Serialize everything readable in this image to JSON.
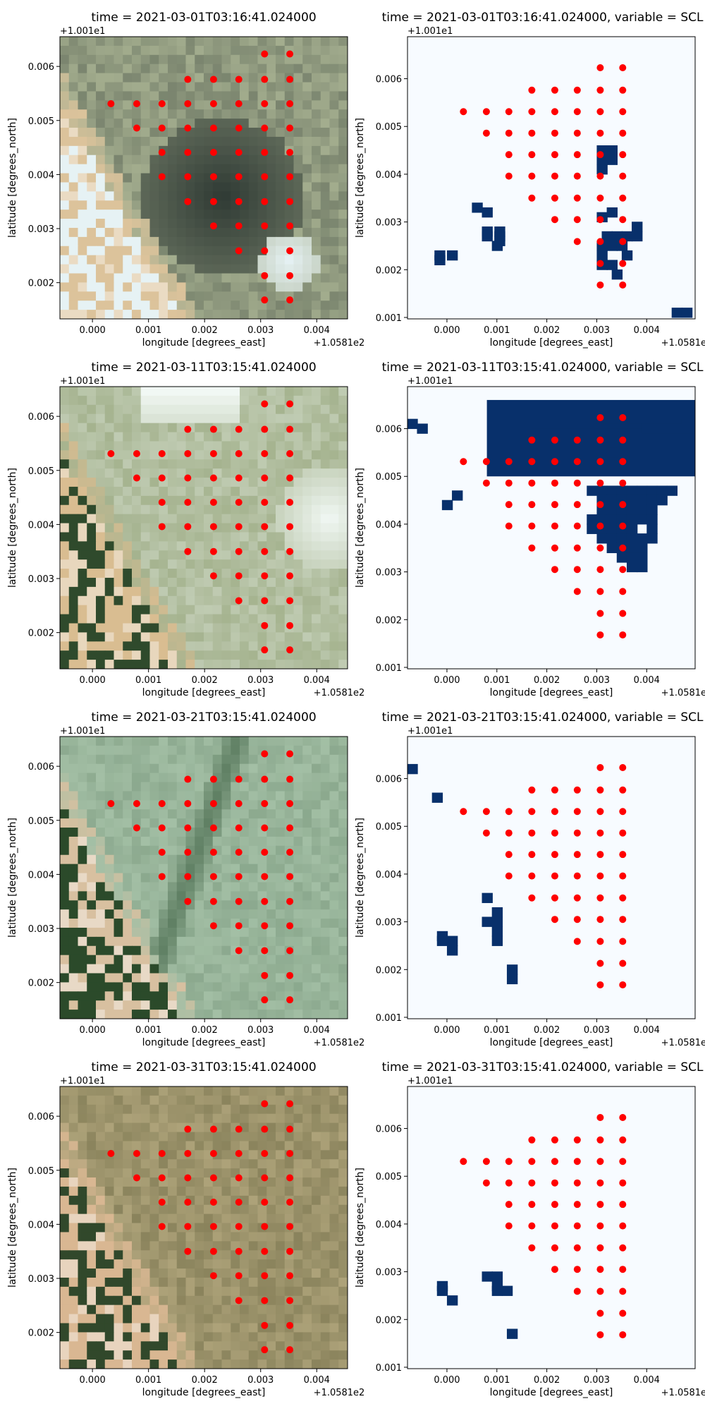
{
  "figure": {
    "x_offset_label": "+1.0581e2",
    "y_offset_label": "+1.001e1",
    "xlabel": "longitude [degrees_east]",
    "ylabel": "latitude [degrees_north]"
  },
  "point_color": "#ff0000",
  "mask_color": "#08306b",
  "mask_background": "#f7fbff",
  "chart_data": [
    {
      "type": "scatter",
      "title": "time = 2021-03-01T03:16:41.024000",
      "background": "rgb-satellite-image",
      "image_palette": [
        "#a3ad8e",
        "#2f3a34",
        "#e6f2f4",
        "#dcc39b"
      ],
      "xlim": [
        -0.00058,
        0.00455
      ],
      "ylim": [
        0.00133,
        0.00655
      ],
      "xticks": [
        0.0,
        0.001,
        0.002,
        0.003,
        0.004
      ],
      "xtick_labels": [
        "0.000",
        "0.001",
        "0.002",
        "0.003",
        "0.004"
      ],
      "yticks": [
        0.002,
        0.003,
        0.004,
        0.005,
        0.006
      ],
      "ytick_labels": [
        "0.002",
        "0.003",
        "0.004",
        "0.005",
        "0.006"
      ],
      "points_ref": "sample_points"
    },
    {
      "type": "scatter",
      "title": "time = 2021-03-01T03:16:41.024000, variable = SCL",
      "background": "mask",
      "xlim": [
        -0.00079,
        0.00497
      ],
      "ylim": [
        0.00097,
        0.00688
      ],
      "xticks": [
        0.0,
        0.001,
        0.002,
        0.003,
        0.004
      ],
      "xtick_labels": [
        "0.000",
        "0.001",
        "0.002",
        "0.003",
        "0.004"
      ],
      "yticks": [
        0.001,
        0.002,
        0.003,
        0.004,
        0.005,
        0.006
      ],
      "ytick_labels": [
        "0.001",
        "0.002",
        "0.003",
        "0.004",
        "0.005",
        "0.006"
      ],
      "mask_cells": [
        [
          -0.00025,
          0.0021
        ],
        [
          -0.00025,
          0.0022
        ],
        [
          0.0,
          0.0022
        ],
        [
          0.0007,
          0.0031
        ],
        [
          0.0005,
          0.0032
        ],
        [
          0.0007,
          0.0026
        ],
        [
          0.0007,
          0.0027
        ],
        [
          0.00095,
          0.0026
        ],
        [
          0.00095,
          0.0027
        ],
        [
          0.00095,
          0.0025
        ],
        [
          0.0009,
          0.0024
        ],
        [
          0.003,
          0.0044
        ],
        [
          0.003,
          0.0042
        ],
        [
          0.003,
          0.004
        ],
        [
          0.0032,
          0.0044
        ],
        [
          0.0032,
          0.0042
        ],
        [
          0.003,
          0.003
        ],
        [
          0.0032,
          0.0031
        ],
        [
          0.0031,
          0.0026
        ],
        [
          0.0033,
          0.0026
        ],
        [
          0.0035,
          0.0026
        ],
        [
          0.0037,
          0.0026
        ],
        [
          0.0037,
          0.0028
        ],
        [
          0.003,
          0.0024
        ],
        [
          0.0032,
          0.0024
        ],
        [
          0.0034,
          0.0024
        ],
        [
          0.0035,
          0.0022
        ],
        [
          0.003,
          0.0022
        ],
        [
          0.003,
          0.002
        ],
        [
          0.0032,
          0.002
        ],
        [
          0.0033,
          0.0018
        ],
        [
          0.0045,
          0.001
        ],
        [
          0.0047,
          0.001
        ]
      ]
    },
    {
      "type": "scatter",
      "title": "time = 2021-03-11T03:15:41.024000",
      "background": "rgb-satellite-image",
      "image_palette": [
        "#a5b38f",
        "#f1f8f4",
        "#2f4a2c",
        "#d9bd91"
      ],
      "xlim": [
        -0.00058,
        0.00455
      ],
      "ylim": [
        0.00133,
        0.00655
      ],
      "xticks": [
        0.0,
        0.001,
        0.002,
        0.003,
        0.004
      ],
      "xtick_labels": [
        "0.000",
        "0.001",
        "0.002",
        "0.003",
        "0.004"
      ],
      "yticks": [
        0.002,
        0.003,
        0.004,
        0.005,
        0.006
      ],
      "ytick_labels": [
        "0.002",
        "0.003",
        "0.004",
        "0.005",
        "0.006"
      ],
      "points_ref": "sample_points"
    },
    {
      "type": "scatter",
      "title": "time = 2021-03-11T03:15:41.024000, variable = SCL",
      "background": "mask",
      "xlim": [
        -0.00079,
        0.00497
      ],
      "ylim": [
        0.00097,
        0.00688
      ],
      "xticks": [
        0.0,
        0.001,
        0.002,
        0.003,
        0.004
      ],
      "xtick_labels": [
        "0.000",
        "0.001",
        "0.002",
        "0.003",
        "0.004"
      ],
      "yticks": [
        0.001,
        0.002,
        0.003,
        0.004,
        0.005,
        0.006
      ],
      "ytick_labels": [
        "0.001",
        "0.002",
        "0.003",
        "0.004",
        "0.005",
        "0.006"
      ],
      "mask_cells": [
        [
          -0.0008,
          0.006
        ],
        [
          -0.0006,
          0.0059
        ],
        [
          -0.0001,
          0.0043
        ],
        [
          0.0001,
          0.0045
        ],
        [
          0.0032,
          0.0054
        ],
        [
          0.0028,
          0.0046
        ],
        [
          0.003,
          0.0046
        ],
        [
          0.0032,
          0.0046
        ],
        [
          0.0034,
          0.0046
        ],
        [
          0.0036,
          0.0046
        ],
        [
          0.0038,
          0.0046
        ],
        [
          0.004,
          0.0046
        ],
        [
          0.0042,
          0.0046
        ],
        [
          0.0044,
          0.0046
        ],
        [
          0.003,
          0.0044
        ],
        [
          0.0032,
          0.0044
        ],
        [
          0.0034,
          0.0044
        ],
        [
          0.0036,
          0.0044
        ],
        [
          0.0038,
          0.0044
        ],
        [
          0.004,
          0.0044
        ],
        [
          0.0042,
          0.0044
        ],
        [
          0.003,
          0.0042
        ],
        [
          0.0032,
          0.0042
        ],
        [
          0.0034,
          0.0042
        ],
        [
          0.0036,
          0.0042
        ],
        [
          0.0038,
          0.0042
        ],
        [
          0.004,
          0.0042
        ],
        [
          0.0028,
          0.004
        ],
        [
          0.003,
          0.004
        ],
        [
          0.0032,
          0.004
        ],
        [
          0.0034,
          0.004
        ],
        [
          0.0036,
          0.004
        ],
        [
          0.0038,
          0.004
        ],
        [
          0.004,
          0.004
        ],
        [
          0.0028,
          0.0038
        ],
        [
          0.003,
          0.0038
        ],
        [
          0.0032,
          0.0038
        ],
        [
          0.0034,
          0.0038
        ],
        [
          0.0036,
          0.0038
        ],
        [
          0.004,
          0.0038
        ],
        [
          0.003,
          0.0036
        ],
        [
          0.0032,
          0.0036
        ],
        [
          0.0034,
          0.0036
        ],
        [
          0.0036,
          0.0036
        ],
        [
          0.0038,
          0.0036
        ],
        [
          0.004,
          0.0036
        ],
        [
          0.0032,
          0.0034
        ],
        [
          0.0034,
          0.0034
        ],
        [
          0.0036,
          0.0034
        ],
        [
          0.0038,
          0.0034
        ],
        [
          0.0034,
          0.0032
        ],
        [
          0.0036,
          0.0032
        ],
        [
          0.0038,
          0.0032
        ],
        [
          0.0036,
          0.003
        ],
        [
          0.0038,
          0.003
        ]
      ],
      "mask_regions": [
        [
          0.0008,
          0.007,
          0.005,
          0.0066
        ],
        [
          0.0017,
          0.005,
          0.0055,
          0.006
        ],
        [
          0.003,
          0.0047,
          0.0061,
          0.0062
        ],
        [
          0.0039,
          0.005,
          0.0059,
          0.0061
        ]
      ]
    },
    {
      "type": "scatter",
      "title": "time = 2021-03-21T03:15:41.024000",
      "background": "rgb-satellite-image",
      "image_palette": [
        "#a3bfa5",
        "#5f7f63",
        "#2b4a2a",
        "#d8c0a0"
      ],
      "xlim": [
        -0.00058,
        0.00455
      ],
      "ylim": [
        0.00133,
        0.00655
      ],
      "xticks": [
        0.0,
        0.001,
        0.002,
        0.003,
        0.004
      ],
      "xtick_labels": [
        "0.000",
        "0.001",
        "0.002",
        "0.003",
        "0.004"
      ],
      "yticks": [
        0.002,
        0.003,
        0.004,
        0.005,
        0.006
      ],
      "ytick_labels": [
        "0.002",
        "0.003",
        "0.004",
        "0.005",
        "0.006"
      ],
      "points_ref": "sample_points"
    },
    {
      "type": "scatter",
      "title": "time = 2021-03-21T03:15:41.024000, variable = SCL",
      "background": "mask",
      "xlim": [
        -0.00079,
        0.00497
      ],
      "ylim": [
        0.00097,
        0.00688
      ],
      "xticks": [
        0.0,
        0.001,
        0.002,
        0.003,
        0.004
      ],
      "xtick_labels": [
        "0.000",
        "0.001",
        "0.002",
        "0.003",
        "0.004"
      ],
      "yticks": [
        0.001,
        0.002,
        0.003,
        0.004,
        0.005,
        0.006
      ],
      "ytick_labels": [
        "0.001",
        "0.002",
        "0.003",
        "0.004",
        "0.005",
        "0.006"
      ],
      "mask_cells": [
        [
          -0.0008,
          0.0061
        ],
        [
          -0.0003,
          0.0055
        ],
        [
          0.0007,
          0.0034
        ],
        [
          0.0007,
          0.0029
        ],
        [
          0.0009,
          0.0031
        ],
        [
          0.0009,
          0.0029
        ],
        [
          0.0009,
          0.0027
        ],
        [
          0.0009,
          0.0025
        ],
        [
          -0.0002,
          0.0026
        ],
        [
          -0.0002,
          0.0025
        ],
        [
          0.0,
          0.0025
        ],
        [
          0.0,
          0.0023
        ],
        [
          0.0012,
          0.0019
        ],
        [
          0.0012,
          0.0017
        ]
      ]
    },
    {
      "type": "scatter",
      "title": "time = 2021-03-31T03:15:41.024000",
      "background": "rgb-satellite-image",
      "image_palette": [
        "#ada279",
        "#7b7650",
        "#31482b",
        "#d9b792"
      ],
      "xlim": [
        -0.00058,
        0.00455
      ],
      "ylim": [
        0.00133,
        0.00655
      ],
      "xticks": [
        0.0,
        0.001,
        0.002,
        0.003,
        0.004
      ],
      "xtick_labels": [
        "0.000",
        "0.001",
        "0.002",
        "0.003",
        "0.004"
      ],
      "yticks": [
        0.002,
        0.003,
        0.004,
        0.005,
        0.006
      ],
      "ytick_labels": [
        "0.002",
        "0.003",
        "0.004",
        "0.005",
        "0.006"
      ],
      "points_ref": "sample_points"
    },
    {
      "type": "scatter",
      "title": "time = 2021-03-31T03:15:41.024000, variable = SCL",
      "background": "mask",
      "xlim": [
        -0.00079,
        0.00497
      ],
      "ylim": [
        0.00097,
        0.00688
      ],
      "xticks": [
        0.0,
        0.001,
        0.002,
        0.003,
        0.004
      ],
      "xtick_labels": [
        "0.000",
        "0.001",
        "0.002",
        "0.003",
        "0.004"
      ],
      "yticks": [
        0.001,
        0.002,
        0.003,
        0.004,
        0.005,
        0.006
      ],
      "ytick_labels": [
        "0.001",
        "0.002",
        "0.003",
        "0.004",
        "0.005",
        "0.006"
      ],
      "mask_cells": [
        [
          -0.0002,
          0.0026
        ],
        [
          -0.0002,
          0.0025
        ],
        [
          0.0,
          0.0023
        ],
        [
          0.0007,
          0.0028
        ],
        [
          0.0009,
          0.0028
        ],
        [
          0.0009,
          0.0026
        ],
        [
          0.0009,
          0.0025
        ],
        [
          0.0011,
          0.0025
        ],
        [
          0.0012,
          0.0016
        ]
      ]
    }
  ],
  "sample_points": [
    [
      0.00307,
      0.00623
    ],
    [
      0.00352,
      0.00623
    ],
    [
      0.0017,
      0.00576
    ],
    [
      0.00216,
      0.00576
    ],
    [
      0.00261,
      0.00576
    ],
    [
      0.00307,
      0.00576
    ],
    [
      0.00352,
      0.00576
    ],
    [
      0.00033,
      0.00531
    ],
    [
      0.00079,
      0.00531
    ],
    [
      0.00124,
      0.00531
    ],
    [
      0.0017,
      0.00531
    ],
    [
      0.00216,
      0.00531
    ],
    [
      0.00261,
      0.00531
    ],
    [
      0.00307,
      0.00531
    ],
    [
      0.00352,
      0.00531
    ],
    [
      0.00079,
      0.00486
    ],
    [
      0.00124,
      0.00486
    ],
    [
      0.0017,
      0.00486
    ],
    [
      0.00216,
      0.00486
    ],
    [
      0.00261,
      0.00486
    ],
    [
      0.00307,
      0.00486
    ],
    [
      0.00352,
      0.00486
    ],
    [
      0.00124,
      0.00441
    ],
    [
      0.0017,
      0.00441
    ],
    [
      0.00216,
      0.00441
    ],
    [
      0.00261,
      0.00441
    ],
    [
      0.00307,
      0.00441
    ],
    [
      0.00352,
      0.00441
    ],
    [
      0.00124,
      0.00396
    ],
    [
      0.0017,
      0.00396
    ],
    [
      0.00216,
      0.00396
    ],
    [
      0.00261,
      0.00396
    ],
    [
      0.00307,
      0.00396
    ],
    [
      0.00352,
      0.00396
    ],
    [
      0.0017,
      0.0035
    ],
    [
      0.00216,
      0.0035
    ],
    [
      0.00261,
      0.0035
    ],
    [
      0.00307,
      0.0035
    ],
    [
      0.00352,
      0.0035
    ],
    [
      0.00216,
      0.00305
    ],
    [
      0.00261,
      0.00305
    ],
    [
      0.00307,
      0.00305
    ],
    [
      0.00352,
      0.00305
    ],
    [
      0.00261,
      0.00259
    ],
    [
      0.00307,
      0.00259
    ],
    [
      0.00352,
      0.00259
    ],
    [
      0.00307,
      0.00213
    ],
    [
      0.00352,
      0.00213
    ],
    [
      0.00307,
      0.00168
    ],
    [
      0.00352,
      0.00168
    ]
  ]
}
